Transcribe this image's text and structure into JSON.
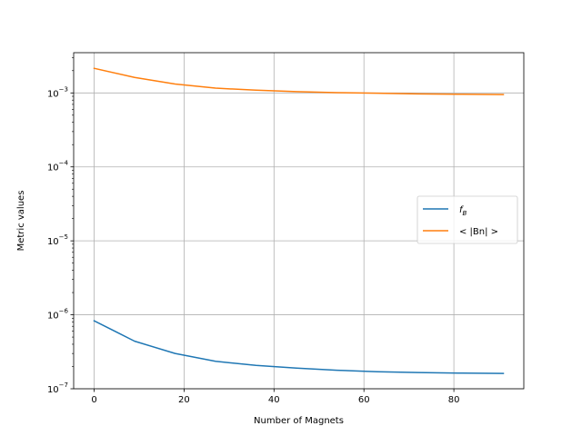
{
  "chart_data": {
    "type": "line",
    "title": "",
    "xlabel": "Number of Magnets",
    "ylabel": "Metric values",
    "xlim": [
      -4.55,
      95.55
    ],
    "ylim": [
      1e-07,
      0.0035
    ],
    "yscale": "log",
    "grid": true,
    "legend_position": "center-right",
    "xticks": [
      0,
      20,
      40,
      60,
      80
    ],
    "xtick_labels": [
      "0",
      "20",
      "40",
      "60",
      "80"
    ],
    "yticks": [
      1e-07,
      1e-06,
      1e-05,
      0.0001,
      0.001
    ],
    "ytick_labels": [
      {
        "base": "10",
        "exp": "−7"
      },
      {
        "base": "10",
        "exp": "−6"
      },
      {
        "base": "10",
        "exp": "−5"
      },
      {
        "base": "10",
        "exp": "−4"
      },
      {
        "base": "10",
        "exp": "−3"
      }
    ],
    "series": [
      {
        "name": "f_B",
        "label_main": "f",
        "label_sub": "B",
        "color": "#1f77b4",
        "x": [
          0,
          9,
          18,
          27,
          36,
          45,
          54,
          63,
          72,
          81,
          91
        ],
        "y": [
          8.3e-07,
          4.4e-07,
          3e-07,
          2.35e-07,
          2.07e-07,
          1.9e-07,
          1.78e-07,
          1.7e-07,
          1.66e-07,
          1.63e-07,
          1.61e-07
        ]
      },
      {
        "name": "< |Bn| >",
        "label_main": "< |Bn| >",
        "color": "#ff7f0e",
        "x": [
          0,
          9,
          18,
          27,
          36,
          45,
          54,
          63,
          72,
          81,
          91
        ],
        "y": [
          0.00215,
          0.00162,
          0.00132,
          0.00116,
          0.00109,
          0.00104,
          0.00101,
          0.00099,
          0.00097,
          0.00096,
          0.00095
        ]
      }
    ]
  }
}
